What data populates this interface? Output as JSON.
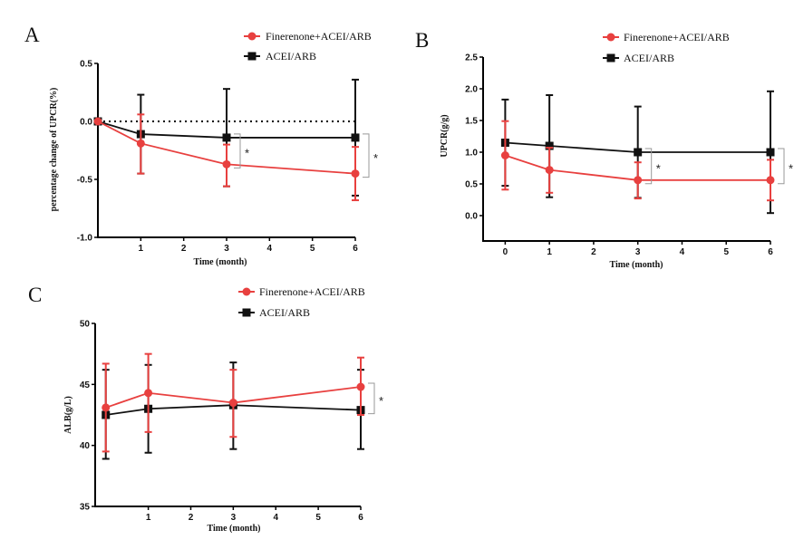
{
  "colors": {
    "treatment": "#e8403f",
    "control": "#111111",
    "bracket": "#999999"
  },
  "chart_data": [
    {
      "panel": "A",
      "type": "line",
      "xlabel": "Time (month)",
      "ylabel": "percentage change of UPCR(%)",
      "xlim": [
        0,
        6
      ],
      "ylim": [
        -1.0,
        0.5
      ],
      "xticks": [
        "1",
        "2",
        "3",
        "4",
        "5",
        "6"
      ],
      "yticks": [
        "0.5",
        "0.0",
        "-0.5",
        "-1.0"
      ],
      "reference_line": 0,
      "legend_placement": "top-right",
      "x": [
        0,
        1,
        3,
        6
      ],
      "series": [
        {
          "name": "Finerenone+ACEI/ARB",
          "color": "#e8403f",
          "marker": "circle",
          "values": [
            0,
            -0.19,
            -0.37,
            -0.45
          ],
          "upper": [
            0,
            0.06,
            -0.2,
            -0.22
          ],
          "lower": [
            0,
            -0.45,
            -0.56,
            -0.68
          ]
        },
        {
          "name": "ACEI/ARB",
          "color": "#111111",
          "marker": "square",
          "values": [
            0,
            -0.11,
            -0.14,
            -0.14
          ],
          "upper": [
            0,
            0.23,
            0.28,
            0.36
          ],
          "lower": [
            0,
            -0.45,
            -0.56,
            -0.64
          ]
        }
      ],
      "significance": [
        {
          "x": 3,
          "label": "*"
        },
        {
          "x": 6,
          "label": "*"
        }
      ]
    },
    {
      "panel": "B",
      "type": "line",
      "xlabel": "Time (month)",
      "ylabel": "UPCR(g/g)",
      "xlim": [
        -0.5,
        6
      ],
      "ylim": [
        -0.4,
        2.5
      ],
      "xticks": [
        "0",
        "1",
        "2",
        "3",
        "4",
        "5",
        "6"
      ],
      "yticks": [
        "2.5",
        "2.0",
        "1.5",
        "1.0",
        "0.5",
        "0.0"
      ],
      "legend_placement": "top-right",
      "x": [
        0,
        1,
        3,
        6
      ],
      "series": [
        {
          "name": "Finerenone+ACEI/ARB",
          "color": "#e8403f",
          "marker": "circle",
          "values": [
            0.95,
            0.72,
            0.56,
            0.56
          ],
          "upper": [
            1.49,
            1.07,
            0.84,
            0.88
          ],
          "lower": [
            0.41,
            0.36,
            0.27,
            0.24
          ]
        },
        {
          "name": "ACEI/ARB",
          "color": "#111111",
          "marker": "square",
          "values": [
            1.15,
            1.1,
            1.0,
            1.0
          ],
          "upper": [
            1.83,
            1.9,
            1.72,
            1.96
          ],
          "lower": [
            0.47,
            0.29,
            0.28,
            0.04
          ]
        }
      ],
      "significance": [
        {
          "x": 3,
          "label": "*"
        },
        {
          "x": 6,
          "label": "*"
        }
      ]
    },
    {
      "panel": "C",
      "type": "line",
      "xlabel": "Time (month)",
      "ylabel": "ALB(g/L)",
      "xlim": [
        -0.25,
        6
      ],
      "ylim": [
        35,
        50
      ],
      "xticks": [
        "1",
        "2",
        "3",
        "4",
        "5",
        "6"
      ],
      "yticks": [
        "50",
        "45",
        "40",
        "35"
      ],
      "legend_placement": "top-right",
      "x": [
        0,
        1,
        3,
        6
      ],
      "series": [
        {
          "name": "Finerenone+ACEI/ARB",
          "color": "#e8403f",
          "marker": "circle",
          "values": [
            43.1,
            44.3,
            43.5,
            44.8
          ],
          "upper": [
            46.7,
            47.5,
            46.2,
            47.2
          ],
          "lower": [
            39.5,
            41.1,
            40.7,
            42.5
          ]
        },
        {
          "name": "ACEI/ARB",
          "color": "#111111",
          "marker": "square",
          "values": [
            42.5,
            43.0,
            43.3,
            42.9
          ],
          "upper": [
            46.2,
            46.6,
            46.8,
            46.2
          ],
          "lower": [
            38.9,
            39.4,
            39.7,
            39.7
          ]
        }
      ],
      "significance": [
        {
          "x": 6,
          "label": "*"
        }
      ]
    }
  ]
}
